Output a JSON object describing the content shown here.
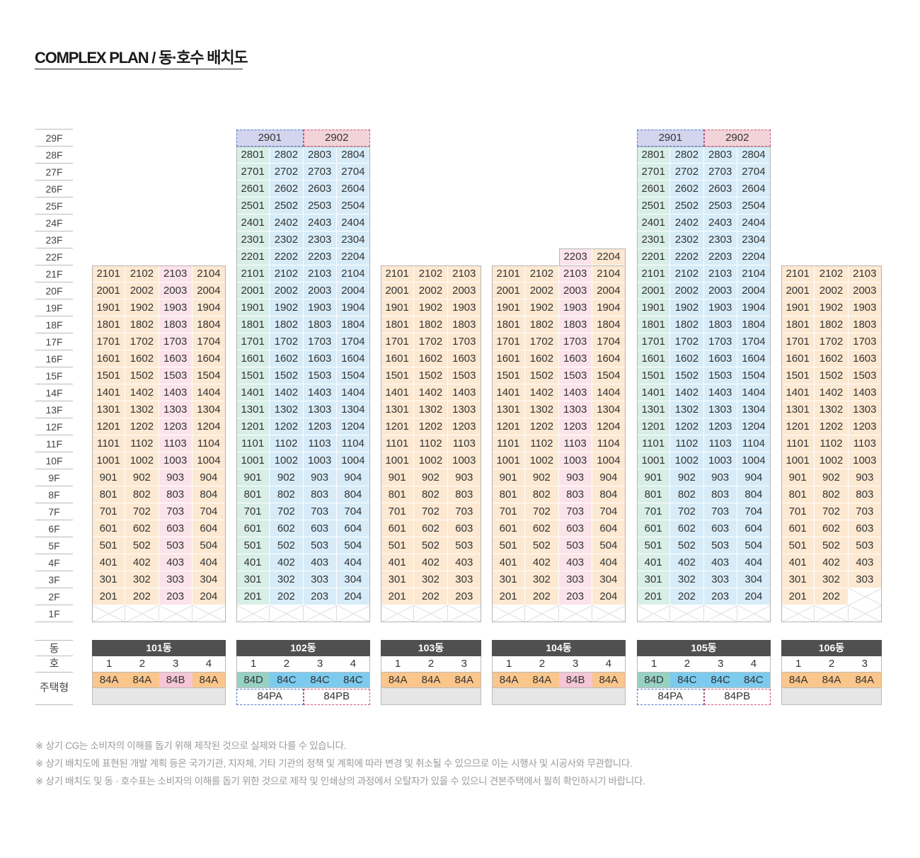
{
  "title": "COMPLEX PLAN / 동·호수 배치도",
  "floor_labels": [
    "29F",
    "28F",
    "27F",
    "26F",
    "25F",
    "24F",
    "23F",
    "22F",
    "21F",
    "20F",
    "19F",
    "18F",
    "17F",
    "16F",
    "15F",
    "14F",
    "13F",
    "12F",
    "11F",
    "10F",
    "9F",
    "8F",
    "7F",
    "6F",
    "5F",
    "4F",
    "3F",
    "2F",
    "1F"
  ],
  "side_labels": {
    "dong": "동",
    "ho": "호",
    "type": "주택형"
  },
  "type_colors": {
    "84A": {
      "bg": "#fde8d1",
      "chip": "#fbc68b"
    },
    "84B": {
      "bg": "#fbe3ea",
      "chip": "#f5c6d6"
    },
    "84C": {
      "bg": "#d7ecf8",
      "chip": "#7ccbef"
    },
    "84D": {
      "bg": "#d8eee6",
      "chip": "#97d1c4"
    },
    "84PA": {
      "bg": "#d3d5ef",
      "border": "#4a78c8"
    },
    "84PB": {
      "bg": "#f2d3d8",
      "border": "#c8557a"
    }
  },
  "header_color": "#505050",
  "buildings": [
    {
      "name": "101동",
      "top_floor": 21,
      "ho": [
        "1",
        "2",
        "3",
        "4"
      ],
      "types": [
        "84A",
        "84A",
        "84B",
        "84A"
      ],
      "extra": null,
      "rows": [
        [
          "2101",
          "2102",
          "2103",
          "2104"
        ],
        [
          "2001",
          "2002",
          "2003",
          "2004"
        ],
        [
          "1901",
          "1902",
          "1903",
          "1904"
        ],
        [
          "1801",
          "1802",
          "1803",
          "1804"
        ],
        [
          "1701",
          "1702",
          "1703",
          "1704"
        ],
        [
          "1601",
          "1602",
          "1603",
          "1604"
        ],
        [
          "1501",
          "1502",
          "1503",
          "1504"
        ],
        [
          "1401",
          "1402",
          "1403",
          "1404"
        ],
        [
          "1301",
          "1302",
          "1303",
          "1304"
        ],
        [
          "1201",
          "1202",
          "1203",
          "1204"
        ],
        [
          "1101",
          "1102",
          "1103",
          "1104"
        ],
        [
          "1001",
          "1002",
          "1003",
          "1004"
        ],
        [
          "901",
          "902",
          "903",
          "904"
        ],
        [
          "801",
          "802",
          "803",
          "804"
        ],
        [
          "701",
          "702",
          "703",
          "704"
        ],
        [
          "601",
          "602",
          "603",
          "604"
        ],
        [
          "501",
          "502",
          "503",
          "504"
        ],
        [
          "401",
          "402",
          "403",
          "404"
        ],
        [
          "301",
          "302",
          "303",
          "304"
        ],
        [
          "201",
          "202",
          "203",
          "204"
        ]
      ]
    },
    {
      "name": "102동",
      "top_floor": 29,
      "ho": [
        "1",
        "2",
        "3",
        "4"
      ],
      "types": [
        "84D",
        "84C",
        "84C",
        "84C"
      ],
      "extra": [
        "84PA",
        "84PB"
      ],
      "penthouse": [
        "2901",
        "2902"
      ],
      "rows": [
        [
          "2801",
          "2802",
          "2803",
          "2804"
        ],
        [
          "2701",
          "2702",
          "2703",
          "2704"
        ],
        [
          "2601",
          "2602",
          "2603",
          "2604"
        ],
        [
          "2501",
          "2502",
          "2503",
          "2504"
        ],
        [
          "2401",
          "2402",
          "2403",
          "2404"
        ],
        [
          "2301",
          "2302",
          "2303",
          "2304"
        ],
        [
          "2201",
          "2202",
          "2203",
          "2204"
        ],
        [
          "2101",
          "2102",
          "2103",
          "2104"
        ],
        [
          "2001",
          "2002",
          "2003",
          "2004"
        ],
        [
          "1901",
          "1902",
          "1903",
          "1904"
        ],
        [
          "1801",
          "1802",
          "1803",
          "1804"
        ],
        [
          "1701",
          "1702",
          "1703",
          "1704"
        ],
        [
          "1601",
          "1602",
          "1603",
          "1604"
        ],
        [
          "1501",
          "1502",
          "1503",
          "1504"
        ],
        [
          "1401",
          "1402",
          "1403",
          "1404"
        ],
        [
          "1301",
          "1302",
          "1303",
          "1304"
        ],
        [
          "1201",
          "1202",
          "1203",
          "1204"
        ],
        [
          "1101",
          "1102",
          "1103",
          "1104"
        ],
        [
          "1001",
          "1002",
          "1003",
          "1004"
        ],
        [
          "901",
          "902",
          "903",
          "904"
        ],
        [
          "801",
          "802",
          "803",
          "804"
        ],
        [
          "701",
          "702",
          "703",
          "704"
        ],
        [
          "601",
          "602",
          "603",
          "604"
        ],
        [
          "501",
          "502",
          "503",
          "504"
        ],
        [
          "401",
          "402",
          "403",
          "404"
        ],
        [
          "301",
          "302",
          "303",
          "304"
        ],
        [
          "201",
          "202",
          "203",
          "204"
        ]
      ]
    },
    {
      "name": "103동",
      "top_floor": 21,
      "ho": [
        "1",
        "2",
        "3"
      ],
      "types": [
        "84A",
        "84A",
        "84A"
      ],
      "extra": null,
      "rows": [
        [
          "2101",
          "2102",
          "2103"
        ],
        [
          "2001",
          "2002",
          "2003"
        ],
        [
          "1901",
          "1902",
          "1903"
        ],
        [
          "1801",
          "1802",
          "1803"
        ],
        [
          "1701",
          "1702",
          "1703"
        ],
        [
          "1601",
          "1602",
          "1603"
        ],
        [
          "1501",
          "1502",
          "1503"
        ],
        [
          "1401",
          "1402",
          "1403"
        ],
        [
          "1301",
          "1302",
          "1303"
        ],
        [
          "1201",
          "1202",
          "1203"
        ],
        [
          "1101",
          "1102",
          "1103"
        ],
        [
          "1001",
          "1002",
          "1003"
        ],
        [
          "901",
          "902",
          "903"
        ],
        [
          "801",
          "802",
          "803"
        ],
        [
          "701",
          "702",
          "703"
        ],
        [
          "601",
          "602",
          "603"
        ],
        [
          "501",
          "502",
          "503"
        ],
        [
          "401",
          "402",
          "403"
        ],
        [
          "301",
          "302",
          "303"
        ],
        [
          "201",
          "202",
          "203"
        ]
      ]
    },
    {
      "name": "104동",
      "top_floor": 22,
      "ho": [
        "1",
        "2",
        "3",
        "4"
      ],
      "types": [
        "84A",
        "84A",
        "84B",
        "84A"
      ],
      "extra": null,
      "rows": [
        [
          null,
          null,
          "2203",
          "2204"
        ],
        [
          "2101",
          "2102",
          "2103",
          "2104"
        ],
        [
          "2001",
          "2002",
          "2003",
          "2004"
        ],
        [
          "1901",
          "1902",
          "1903",
          "1904"
        ],
        [
          "1801",
          "1802",
          "1803",
          "1804"
        ],
        [
          "1701",
          "1702",
          "1703",
          "1704"
        ],
        [
          "1601",
          "1602",
          "1603",
          "1604"
        ],
        [
          "1501",
          "1502",
          "1503",
          "1504"
        ],
        [
          "1401",
          "1402",
          "1403",
          "1404"
        ],
        [
          "1301",
          "1302",
          "1303",
          "1304"
        ],
        [
          "1201",
          "1202",
          "1203",
          "1204"
        ],
        [
          "1101",
          "1102",
          "1103",
          "1104"
        ],
        [
          "1001",
          "1002",
          "1003",
          "1004"
        ],
        [
          "901",
          "902",
          "903",
          "904"
        ],
        [
          "801",
          "802",
          "803",
          "804"
        ],
        [
          "701",
          "702",
          "703",
          "704"
        ],
        [
          "601",
          "602",
          "603",
          "604"
        ],
        [
          "501",
          "502",
          "503",
          "504"
        ],
        [
          "401",
          "402",
          "403",
          "404"
        ],
        [
          "301",
          "302",
          "303",
          "304"
        ],
        [
          "201",
          "202",
          "203",
          "204"
        ]
      ]
    },
    {
      "name": "105동",
      "top_floor": 29,
      "ho": [
        "1",
        "2",
        "3",
        "4"
      ],
      "types": [
        "84D",
        "84C",
        "84C",
        "84C"
      ],
      "extra": [
        "84PA",
        "84PB"
      ],
      "penthouse": [
        "2901",
        "2902"
      ],
      "rows": [
        [
          "2801",
          "2802",
          "2803",
          "2804"
        ],
        [
          "2701",
          "2702",
          "2703",
          "2704"
        ],
        [
          "2601",
          "2602",
          "2603",
          "2604"
        ],
        [
          "2501",
          "2502",
          "2503",
          "2504"
        ],
        [
          "2401",
          "2402",
          "2403",
          "2404"
        ],
        [
          "2301",
          "2302",
          "2303",
          "2304"
        ],
        [
          "2201",
          "2202",
          "2203",
          "2204"
        ],
        [
          "2101",
          "2102",
          "2103",
          "2104"
        ],
        [
          "2001",
          "2002",
          "2003",
          "2004"
        ],
        [
          "1901",
          "1902",
          "1903",
          "1904"
        ],
        [
          "1801",
          "1802",
          "1803",
          "1804"
        ],
        [
          "1701",
          "1702",
          "1703",
          "1704"
        ],
        [
          "1601",
          "1602",
          "1603",
          "1604"
        ],
        [
          "1501",
          "1502",
          "1503",
          "1504"
        ],
        [
          "1401",
          "1402",
          "1403",
          "1404"
        ],
        [
          "1301",
          "1302",
          "1303",
          "1304"
        ],
        [
          "1201",
          "1202",
          "1203",
          "1204"
        ],
        [
          "1101",
          "1102",
          "1103",
          "1104"
        ],
        [
          "1001",
          "1002",
          "1003",
          "1004"
        ],
        [
          "901",
          "902",
          "903",
          "904"
        ],
        [
          "801",
          "802",
          "803",
          "804"
        ],
        [
          "701",
          "702",
          "703",
          "704"
        ],
        [
          "601",
          "602",
          "603",
          "604"
        ],
        [
          "501",
          "502",
          "503",
          "504"
        ],
        [
          "401",
          "402",
          "403",
          "404"
        ],
        [
          "301",
          "302",
          "303",
          "304"
        ],
        [
          "201",
          "202",
          "203",
          "204"
        ]
      ]
    },
    {
      "name": "106동",
      "top_floor": 21,
      "ho": [
        "1",
        "2",
        "3"
      ],
      "types": [
        "84A",
        "84A",
        "84A"
      ],
      "extra": null,
      "rows": [
        [
          "2101",
          "2102",
          "2103"
        ],
        [
          "2001",
          "2002",
          "2003"
        ],
        [
          "1901",
          "1902",
          "1903"
        ],
        [
          "1801",
          "1802",
          "1803"
        ],
        [
          "1701",
          "1702",
          "1703"
        ],
        [
          "1601",
          "1602",
          "1603"
        ],
        [
          "1501",
          "1502",
          "1503"
        ],
        [
          "1401",
          "1402",
          "1403"
        ],
        [
          "1301",
          "1302",
          "1303"
        ],
        [
          "1201",
          "1202",
          "1203"
        ],
        [
          "1101",
          "1102",
          "1103"
        ],
        [
          "1001",
          "1002",
          "1003"
        ],
        [
          "901",
          "902",
          "903"
        ],
        [
          "801",
          "802",
          "803"
        ],
        [
          "701",
          "702",
          "703"
        ],
        [
          "601",
          "602",
          "603"
        ],
        [
          "501",
          "502",
          "503"
        ],
        [
          "401",
          "402",
          "403"
        ],
        [
          "301",
          "302",
          "303"
        ],
        [
          "201",
          "202",
          null
        ]
      ]
    }
  ],
  "notes": [
    "※ 상기 CG는 소비자의 이해를 돕기 위해 제작된 것으로 실제와 다를 수 있습니다.",
    "※ 상기 배치도에 표현된 개발 계획 등은 국가기관, 지자체, 기타 기관의 정책 및 계획에 따라 변경 및 취소될 수 있으므로 이는 시행사 및 시공사와 무관합니다.",
    "※ 상기 배치도 및 동 · 호수표는 소비자의 이해를 돕기 위한 것으로 제작 및 인쇄상의 과정에서 오탈자가 있을 수 있으니 견본주택에서 필히 확인하시기 바랍니다."
  ]
}
